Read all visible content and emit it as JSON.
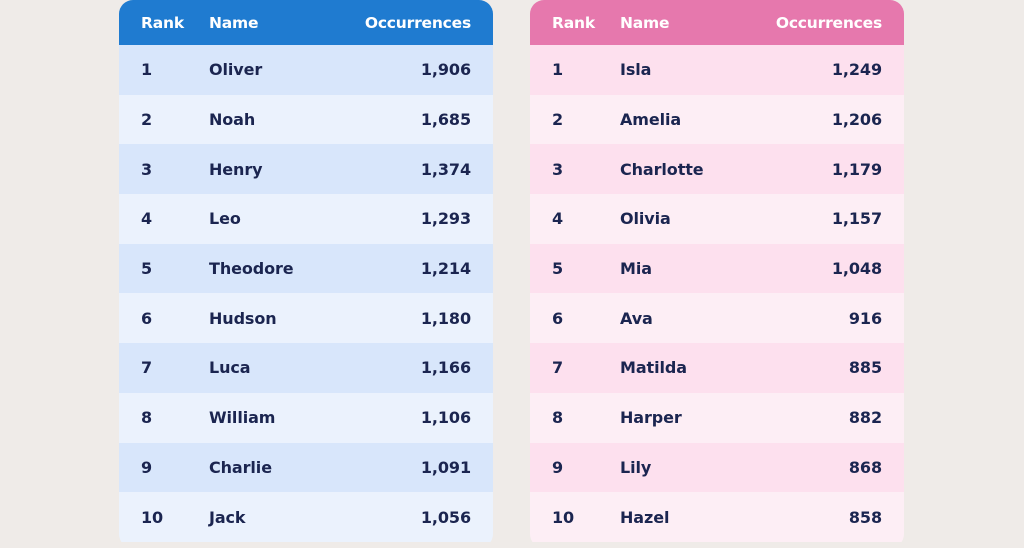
{
  "chart_data": [
    {
      "type": "table",
      "columns": [
        "Rank",
        "Name",
        "Occurrences"
      ],
      "rows": [
        {
          "rank": "1",
          "name": "Oliver",
          "occurrences": "1,906"
        },
        {
          "rank": "2",
          "name": "Noah",
          "occurrences": "1,685"
        },
        {
          "rank": "3",
          "name": "Henry",
          "occurrences": "1,374"
        },
        {
          "rank": "4",
          "name": "Leo",
          "occurrences": "1,293"
        },
        {
          "rank": "5",
          "name": "Theodore",
          "occurrences": "1,214"
        },
        {
          "rank": "6",
          "name": "Hudson",
          "occurrences": "1,180"
        },
        {
          "rank": "7",
          "name": "Luca",
          "occurrences": "1,166"
        },
        {
          "rank": "8",
          "name": "William",
          "occurrences": "1,106"
        },
        {
          "rank": "9",
          "name": "Charlie",
          "occurrences": "1,091"
        },
        {
          "rank": "10",
          "name": "Jack",
          "occurrences": "1,056"
        }
      ],
      "header_color": "#1f7bd0"
    },
    {
      "type": "table",
      "columns": [
        "Rank",
        "Name",
        "Occurrences"
      ],
      "rows": [
        {
          "rank": "1",
          "name": "Isla",
          "occurrences": "1,249"
        },
        {
          "rank": "2",
          "name": "Amelia",
          "occurrences": "1,206"
        },
        {
          "rank": "3",
          "name": "Charlotte",
          "occurrences": "1,179"
        },
        {
          "rank": "4",
          "name": "Olivia",
          "occurrences": "1,157"
        },
        {
          "rank": "5",
          "name": "Mia",
          "occurrences": "1,048"
        },
        {
          "rank": "6",
          "name": "Ava",
          "occurrences": "916"
        },
        {
          "rank": "7",
          "name": "Matilda",
          "occurrences": "885"
        },
        {
          "rank": "8",
          "name": "Harper",
          "occurrences": "882"
        },
        {
          "rank": "9",
          "name": "Lily",
          "occurrences": "868"
        },
        {
          "rank": "10",
          "name": "Hazel",
          "occurrences": "858"
        }
      ],
      "header_color": "#e678ad"
    }
  ]
}
